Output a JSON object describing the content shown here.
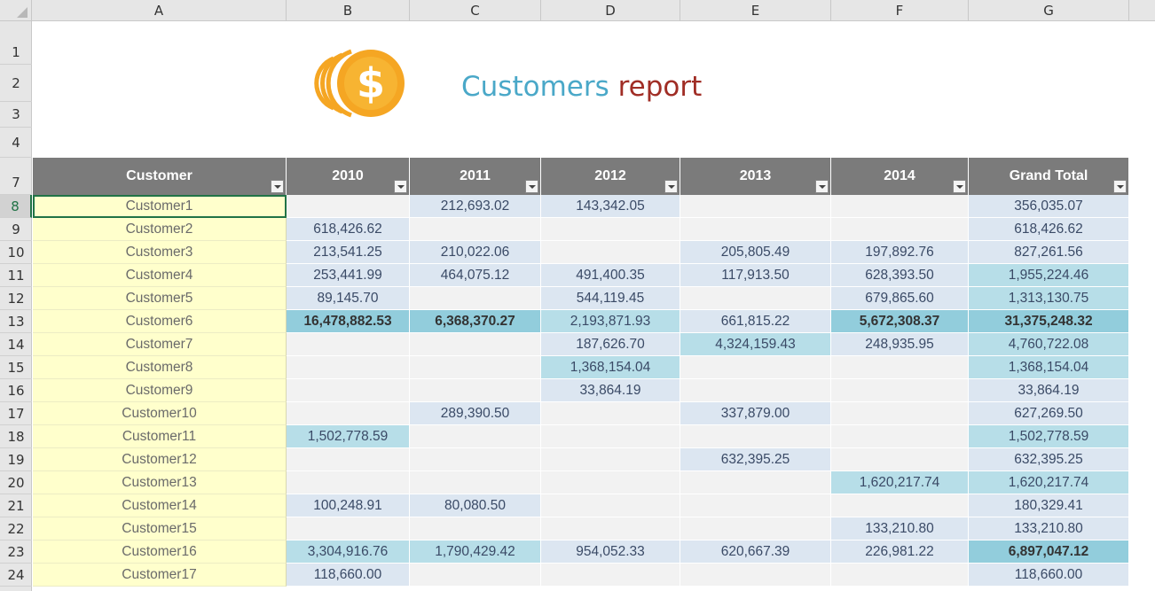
{
  "columns": [
    "A",
    "B",
    "C",
    "D",
    "E",
    "F",
    "G"
  ],
  "row_numbers": [
    "1",
    "2",
    "3",
    "4",
    "7",
    "8",
    "9",
    "10",
    "11",
    "12",
    "13",
    "14",
    "15",
    "16",
    "17",
    "18",
    "19",
    "20",
    "21",
    "22",
    "23",
    "24"
  ],
  "title": {
    "part1": "Customers",
    "part2": "report"
  },
  "logo_icon": "coins-dollar-icon",
  "headers": [
    "Customer",
    "2010",
    "2011",
    "2012",
    "2013",
    "2014",
    "Grand Total"
  ],
  "rows": [
    [
      "Customer1",
      "",
      "212,693.02",
      "143,342.05",
      "",
      "",
      "356,035.07"
    ],
    [
      "Customer2",
      "618,426.62",
      "",
      "",
      "",
      "",
      "618,426.62"
    ],
    [
      "Customer3",
      "213,541.25",
      "210,022.06",
      "",
      "205,805.49",
      "197,892.76",
      "827,261.56"
    ],
    [
      "Customer4",
      "253,441.99",
      "464,075.12",
      "491,400.35",
      "117,913.50",
      "628,393.50",
      "1,955,224.46"
    ],
    [
      "Customer5",
      "89,145.70",
      "",
      "544,119.45",
      "",
      "679,865.60",
      "1,313,130.75"
    ],
    [
      "Customer6",
      "16,478,882.53",
      "6,368,370.27",
      "2,193,871.93",
      "661,815.22",
      "5,672,308.37",
      "31,375,248.32"
    ],
    [
      "Customer7",
      "",
      "",
      "187,626.70",
      "4,324,159.43",
      "248,935.95",
      "4,760,722.08"
    ],
    [
      "Customer8",
      "",
      "",
      "1,368,154.04",
      "",
      "",
      "1,368,154.04"
    ],
    [
      "Customer9",
      "",
      "",
      "33,864.19",
      "",
      "",
      "33,864.19"
    ],
    [
      "Customer10",
      "",
      "289,390.50",
      "",
      "337,879.00",
      "",
      "627,269.50"
    ],
    [
      "Customer11",
      "1,502,778.59",
      "",
      "",
      "",
      "",
      "1,502,778.59"
    ],
    [
      "Customer12",
      "",
      "",
      "",
      "632,395.25",
      "",
      "632,395.25"
    ],
    [
      "Customer13",
      "",
      "",
      "",
      "",
      "1,620,217.74",
      "1,620,217.74"
    ],
    [
      "Customer14",
      "100,248.91",
      "80,080.50",
      "",
      "",
      "",
      "180,329.41"
    ],
    [
      "Customer15",
      "",
      "",
      "",
      "",
      "133,210.80",
      "133,210.80"
    ],
    [
      "Customer16",
      "3,304,916.76",
      "1,790,429.42",
      "954,052.33",
      "620,667.39",
      "226,981.22",
      "6,897,047.12"
    ],
    [
      "Customer17",
      "118,660.00",
      "",
      "",
      "",
      "",
      "118,660.00"
    ]
  ],
  "levels": [
    [
      0,
      0,
      1,
      1,
      0,
      0,
      1
    ],
    [
      0,
      1,
      0,
      0,
      0,
      0,
      1
    ],
    [
      0,
      1,
      1,
      0,
      1,
      1,
      1
    ],
    [
      0,
      1,
      1,
      1,
      1,
      1,
      2
    ],
    [
      0,
      1,
      0,
      1,
      0,
      1,
      2
    ],
    [
      0,
      3,
      3,
      2,
      1,
      3,
      3
    ],
    [
      0,
      0,
      0,
      1,
      2,
      1,
      2
    ],
    [
      0,
      0,
      0,
      2,
      0,
      0,
      2
    ],
    [
      0,
      0,
      0,
      1,
      0,
      0,
      1
    ],
    [
      0,
      0,
      1,
      0,
      1,
      0,
      1
    ],
    [
      0,
      2,
      0,
      0,
      0,
      0,
      2
    ],
    [
      0,
      0,
      0,
      0,
      1,
      0,
      1
    ],
    [
      0,
      0,
      0,
      0,
      0,
      2,
      2
    ],
    [
      0,
      1,
      1,
      0,
      0,
      0,
      1
    ],
    [
      0,
      0,
      0,
      0,
      0,
      1,
      1
    ],
    [
      0,
      2,
      2,
      1,
      1,
      1,
      3
    ],
    [
      0,
      1,
      0,
      0,
      0,
      0,
      1
    ]
  ],
  "colors": {
    "header_bg": "#7b7b7b",
    "customer_bg": "#ffffcc",
    "empty_bg": "#f2f2f2",
    "level1": "#dce6f1",
    "level2": "#b7dee8",
    "level3": "#92cddc",
    "selection": "#217346"
  }
}
